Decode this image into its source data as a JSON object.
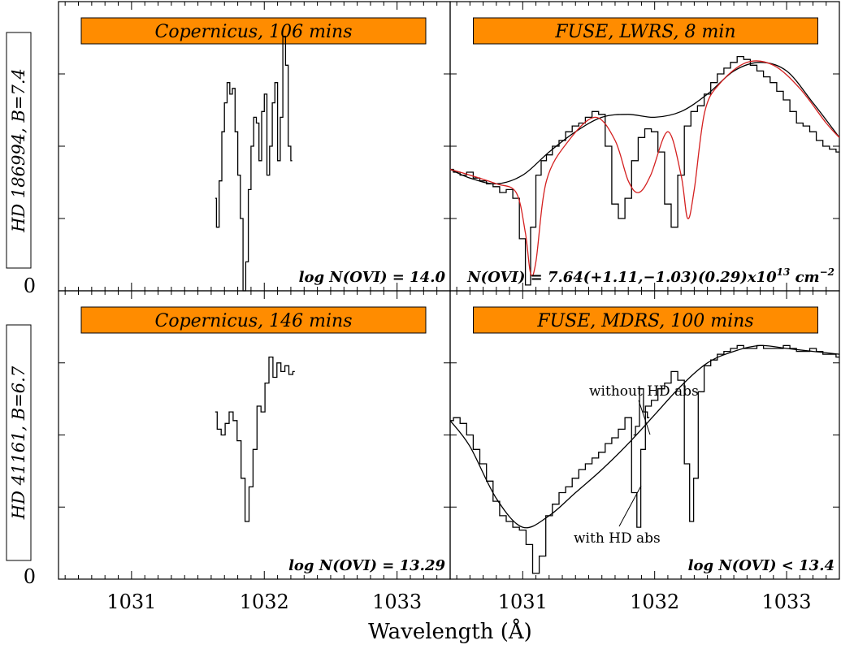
{
  "figure": {
    "xlabel": "Wavelength (Å)",
    "zero_label": "0"
  },
  "chart_data": [
    {
      "type": "line",
      "panel": "top-left",
      "banner": "Copernicus, 106 mins",
      "row_label": "HD 186994, B=7.4",
      "annotation": "log N(OVI) = 14.0",
      "xlabel": "Wavelength (Å)",
      "xlim": [
        1030.45,
        1033.4
      ],
      "ylim": [
        0,
        1
      ],
      "x_ticks": [
        1031,
        1032,
        1033
      ],
      "series": [
        {
          "style": "step",
          "x": [
            1031.63,
            1031.65,
            1031.67,
            1031.69,
            1031.71,
            1031.73,
            1031.75,
            1031.77,
            1031.79,
            1031.81,
            1031.83,
            1031.85,
            1031.87,
            1031.89,
            1031.91,
            1031.93,
            1031.95,
            1031.97,
            1031.99,
            1032.01,
            1032.03,
            1032.05,
            1032.07,
            1032.09,
            1032.11,
            1032.13,
            1032.15,
            1032.17,
            1032.19,
            1032.21
          ],
          "y": [
            0.32,
            0.22,
            0.38,
            0.55,
            0.65,
            0.72,
            0.68,
            0.7,
            0.55,
            0.4,
            0.25,
            0.0,
            0.1,
            0.35,
            0.5,
            0.6,
            0.58,
            0.45,
            0.62,
            0.68,
            0.4,
            0.5,
            0.65,
            0.72,
            0.45,
            0.6,
            0.88,
            0.78,
            0.5,
            0.45
          ]
        }
      ]
    },
    {
      "type": "line",
      "panel": "top-right",
      "banner": "FUSE, LWRS, 8 min",
      "annotation": "N(OVI) = 7.64(+1.11,−1.03)(0.29)x10",
      "annotation_exp": "13",
      "annotation_unit": " cm",
      "annotation_unit_exp": "−2",
      "xlabel": "Wavelength (Å)",
      "xlim": [
        1030.45,
        1033.4
      ],
      "ylim": [
        0,
        1
      ],
      "x_ticks": [
        1031,
        1032,
        1033
      ],
      "series": [
        {
          "style": "step",
          "x": [
            1030.45,
            1030.5,
            1030.55,
            1030.6,
            1030.65,
            1030.7,
            1030.75,
            1030.8,
            1030.85,
            1030.9,
            1030.95,
            1031.0,
            1031.04,
            1031.08,
            1031.12,
            1031.16,
            1031.2,
            1031.25,
            1031.3,
            1031.35,
            1031.4,
            1031.45,
            1031.5,
            1031.55,
            1031.6,
            1031.65,
            1031.7,
            1031.75,
            1031.8,
            1031.85,
            1031.9,
            1031.95,
            1032.0,
            1032.05,
            1032.1,
            1032.15,
            1032.2,
            1032.25,
            1032.3,
            1032.35,
            1032.4,
            1032.45,
            1032.5,
            1032.55,
            1032.6,
            1032.65,
            1032.7,
            1032.75,
            1032.8,
            1032.85,
            1032.9,
            1032.95,
            1033.0,
            1033.05,
            1033.1,
            1033.15,
            1033.2,
            1033.25,
            1033.3,
            1033.35,
            1033.4
          ],
          "y": [
            0.42,
            0.41,
            0.4,
            0.41,
            0.39,
            0.38,
            0.37,
            0.36,
            0.34,
            0.35,
            0.32,
            0.18,
            0.02,
            0.22,
            0.4,
            0.45,
            0.47,
            0.5,
            0.52,
            0.55,
            0.57,
            0.58,
            0.6,
            0.62,
            0.61,
            0.5,
            0.3,
            0.25,
            0.32,
            0.45,
            0.53,
            0.56,
            0.55,
            0.48,
            0.3,
            0.22,
            0.4,
            0.57,
            0.62,
            0.64,
            0.68,
            0.72,
            0.75,
            0.77,
            0.79,
            0.81,
            0.8,
            0.78,
            0.76,
            0.74,
            0.72,
            0.69,
            0.66,
            0.62,
            0.58,
            0.57,
            0.55,
            0.52,
            0.5,
            0.49,
            0.48
          ]
        },
        {
          "style": "smooth",
          "color": "#000000",
          "x": [
            1030.45,
            1030.6,
            1030.8,
            1031.0,
            1031.2,
            1031.4,
            1031.6,
            1031.8,
            1032.0,
            1032.2,
            1032.4,
            1032.6,
            1032.8,
            1033.0,
            1033.2,
            1033.4
          ],
          "y": [
            0.42,
            0.39,
            0.37,
            0.4,
            0.48,
            0.55,
            0.6,
            0.61,
            0.6,
            0.62,
            0.68,
            0.76,
            0.79,
            0.76,
            0.65,
            0.53
          ]
        },
        {
          "style": "smooth",
          "color": "#d42020",
          "x": [
            1030.45,
            1030.6,
            1030.8,
            1030.95,
            1031.02,
            1031.06,
            1031.1,
            1031.18,
            1031.35,
            1031.55,
            1031.7,
            1031.8,
            1031.88,
            1031.97,
            1032.1,
            1032.2,
            1032.25,
            1032.3,
            1032.38,
            1032.5,
            1032.7,
            1032.9,
            1033.1,
            1033.3,
            1033.4
          ],
          "y": [
            0.42,
            0.4,
            0.37,
            0.34,
            0.2,
            0.06,
            0.1,
            0.38,
            0.52,
            0.6,
            0.52,
            0.38,
            0.34,
            0.4,
            0.55,
            0.4,
            0.25,
            0.35,
            0.62,
            0.72,
            0.79,
            0.78,
            0.7,
            0.58,
            0.53
          ]
        }
      ]
    },
    {
      "type": "line",
      "panel": "bottom-left",
      "banner": "Copernicus, 146 mins",
      "row_label": "HD 41161, B=6.7",
      "annotation": "log N(OVI) = 13.29",
      "xlabel": "Wavelength (Å)",
      "xlim": [
        1030.45,
        1033.4
      ],
      "ylim": [
        0,
        1
      ],
      "x_ticks": [
        1031,
        1032,
        1033
      ],
      "series": [
        {
          "style": "step",
          "x": [
            1031.63,
            1031.66,
            1031.69,
            1031.72,
            1031.75,
            1031.78,
            1031.81,
            1031.84,
            1031.87,
            1031.9,
            1031.93,
            1031.96,
            1031.99,
            1032.02,
            1032.05,
            1032.08,
            1032.11,
            1032.14,
            1032.17,
            1032.2,
            1032.23
          ],
          "y": [
            0.58,
            0.52,
            0.5,
            0.54,
            0.58,
            0.55,
            0.48,
            0.35,
            0.2,
            0.32,
            0.45,
            0.6,
            0.58,
            0.68,
            0.77,
            0.7,
            0.75,
            0.72,
            0.74,
            0.71,
            0.72
          ]
        }
      ]
    },
    {
      "type": "line",
      "panel": "bottom-right",
      "banner": "FUSE, MDRS, 100 mins",
      "annotation": "log N(OVI) < 13.4",
      "label_without": "without HD abs",
      "label_with": "with HD abs",
      "xlabel": "Wavelength (Å)",
      "xlim": [
        1030.45,
        1033.4
      ],
      "ylim": [
        0,
        1
      ],
      "x_ticks": [
        1031,
        1032,
        1033
      ],
      "series": [
        {
          "style": "step",
          "x": [
            1030.45,
            1030.5,
            1030.55,
            1030.6,
            1030.65,
            1030.7,
            1030.75,
            1030.8,
            1030.85,
            1030.9,
            1030.95,
            1031.0,
            1031.05,
            1031.1,
            1031.15,
            1031.2,
            1031.25,
            1031.3,
            1031.35,
            1031.4,
            1031.45,
            1031.5,
            1031.55,
            1031.6,
            1031.65,
            1031.7,
            1031.75,
            1031.8,
            1031.85,
            1031.88,
            1031.91,
            1031.95,
            1032.0,
            1032.05,
            1032.1,
            1032.15,
            1032.2,
            1032.25,
            1032.28,
            1032.31,
            1032.35,
            1032.4,
            1032.45,
            1032.5,
            1032.55,
            1032.6,
            1032.65,
            1032.7,
            1032.75,
            1032.8,
            1032.85,
            1032.9,
            1032.95,
            1033.0,
            1033.05,
            1033.1,
            1033.15,
            1033.2,
            1033.25,
            1033.3,
            1033.35,
            1033.4
          ],
          "y": [
            0.55,
            0.56,
            0.54,
            0.5,
            0.45,
            0.4,
            0.34,
            0.27,
            0.22,
            0.2,
            0.18,
            0.17,
            0.12,
            0.02,
            0.08,
            0.22,
            0.26,
            0.3,
            0.32,
            0.35,
            0.38,
            0.4,
            0.42,
            0.44,
            0.47,
            0.49,
            0.52,
            0.56,
            0.3,
            0.18,
            0.45,
            0.6,
            0.62,
            0.66,
            0.68,
            0.72,
            0.69,
            0.4,
            0.2,
            0.35,
            0.65,
            0.74,
            0.76,
            0.78,
            0.79,
            0.8,
            0.81,
            0.8,
            0.8,
            0.81,
            0.8,
            0.8,
            0.8,
            0.81,
            0.8,
            0.79,
            0.79,
            0.8,
            0.79,
            0.78,
            0.78,
            0.77
          ]
        },
        {
          "style": "smooth",
          "color": "#000000",
          "x": [
            1030.45,
            1030.6,
            1030.8,
            1031.0,
            1031.2,
            1031.4,
            1031.6,
            1031.8,
            1032.0,
            1032.2,
            1032.4,
            1032.6,
            1032.8,
            1033.0,
            1033.2,
            1033.4
          ],
          "y": [
            0.55,
            0.46,
            0.28,
            0.18,
            0.22,
            0.3,
            0.38,
            0.47,
            0.57,
            0.67,
            0.75,
            0.79,
            0.81,
            0.8,
            0.79,
            0.78
          ]
        },
        {
          "style": "step",
          "x": [
            1031.84,
            1031.87,
            1031.9,
            1031.93,
            1031.96
          ],
          "y": [
            0.5,
            0.53,
            0.66,
            0.58,
            0.56
          ]
        }
      ]
    }
  ]
}
